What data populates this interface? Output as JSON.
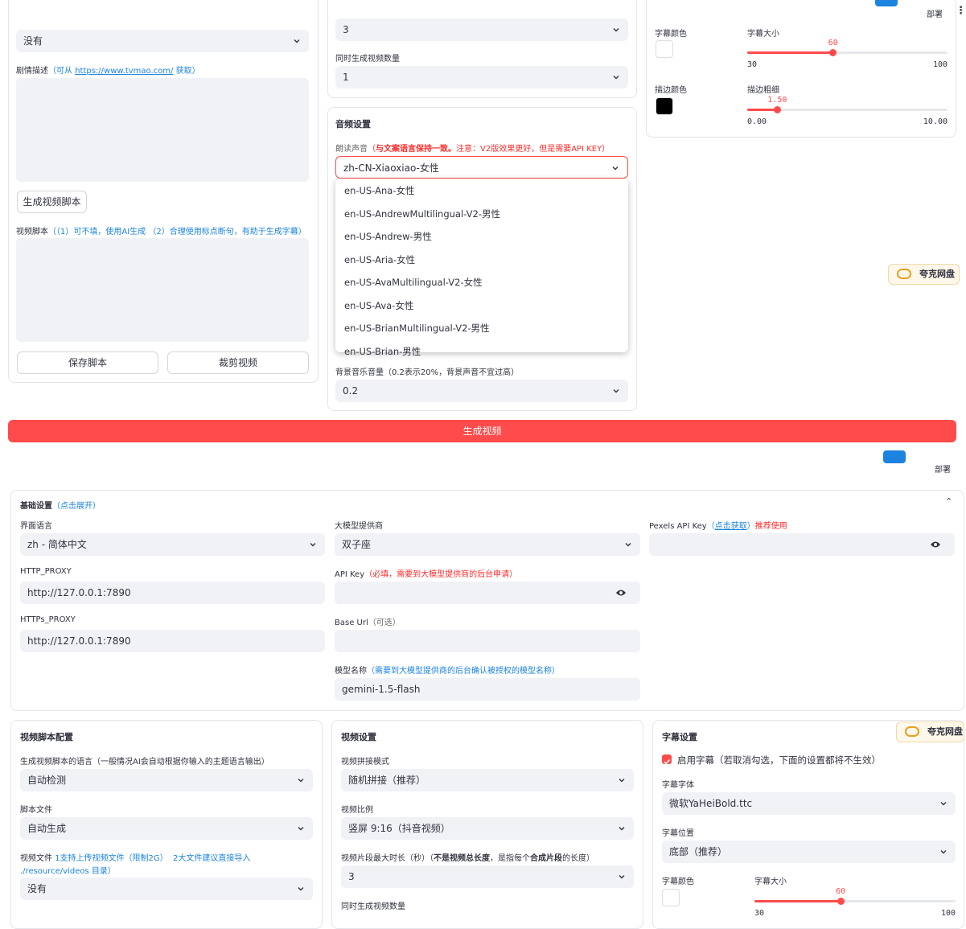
{
  "top": {
    "left": {
      "select_value": "没有",
      "story_label": "剧情描述",
      "story_hint_pre": "（可从 ",
      "story_link": "https://www.tvmao.com/",
      "story_hint_post": " 获取）",
      "gen_script_button": "生成视频脚本",
      "script_label": "视频脚本",
      "script_hint": "（（1）可不填，使用AI生成 （2）合理使用标点断句，有助于生成字幕）",
      "save_button": "保存脚本",
      "cut_button": "裁剪视频"
    },
    "middle": {
      "clip_duration_value": "3",
      "count_label": "同时生成视频数量",
      "count_value": "1",
      "audio_title": "音频设置",
      "voice_label": "朗读声音",
      "voice_note_pre": "（",
      "voice_note_bold": "与文案语言保持一致。",
      "voice_note_rest": "注意：V2版效果更好，但是需要API KEY）",
      "voice_value": "zh-CN-Xiaoxiao-女性",
      "voice_options": [
        "en-US-Ana-女性",
        "en-US-AndrewMultilingual-V2-男性",
        "en-US-Andrew-男性",
        "en-US-Aria-女性",
        "en-US-AvaMultilingual-V2-女性",
        "en-US-Ava-女性",
        "en-US-BrianMultilingual-V2-男性",
        "en-US-Brian-男性"
      ],
      "bgm_label": "背景音乐音量（0.2表示20%，背景声音不宜过高）",
      "bgm_value": "0.2"
    },
    "right": {
      "font_color_label": "字幕颜色",
      "font_color": "#ffffff",
      "font_size_label": "字幕大小",
      "font_size": {
        "value": 60,
        "min": 30,
        "max": 100
      },
      "stroke_color_label": "描边颜色",
      "stroke_color": "#000000",
      "stroke_width_label": "描边粗细",
      "stroke_width": {
        "value": 1.5,
        "value_label": "1.50",
        "min": {
          "value": 0,
          "label": "0.00"
        },
        "max": {
          "value": 10,
          "label": "10.00"
        }
      }
    },
    "deploy": "部署",
    "quark": "夸克网盘",
    "generate_button": "生成视频"
  },
  "bottom": {
    "deploy": "部署",
    "quark": "夸克网盘",
    "basic": {
      "title": "基础设置",
      "hint": "（点击展开）",
      "ui_language_label": "界面语言",
      "ui_language_value": "zh - 简体中文",
      "http_proxy_label": "HTTP_PROXY",
      "http_proxy_value": "http://127.0.0.1:7890",
      "https_proxy_label": "HTTPs_PROXY",
      "https_proxy_value": "http://127.0.0.1:7890",
      "llm_provider_label": "大模型提供商",
      "llm_provider_value": "双子座",
      "api_key_label": "API Key",
      "api_key_hint": "（必填，需要到大模型提供商的后台申请）",
      "base_url_label": "Base Url",
      "base_url_hint": "（可选）",
      "model_label": "模型名称",
      "model_hint": "（需要到大模型提供商的后台确认被授权的模型名称）",
      "model_value": "gemini-1.5-flash",
      "pexels_label": "Pexels API Key",
      "pexels_hint_pre": "（",
      "pexels_link": "点击获取",
      "pexels_hint_post": "）",
      "pexels_recommend": "推荐使用"
    },
    "script": {
      "title": "视频脚本配置",
      "language_label": "生成视频脚本的语言（一般情况AI会自动根据你输入的主题语言输出）",
      "language_value": "自动检测",
      "file_label": "脚本文件",
      "file_value": "自动生成",
      "video_label": "视频文件",
      "video_hint_1": "1支持上传视频文件（限制2G）",
      "video_hint_2": "2大文件建议直接导入",
      "video_hint_3": "./resource/videos 目录）",
      "video_value": "没有"
    },
    "video": {
      "title": "视频设置",
      "concat_label": "视频拼接模式",
      "concat_value": "随机拼接（推荐）",
      "ratio_label": "视频比例",
      "ratio_value": "竖屏 9:16（抖音视频）",
      "clip_label": "视频片段最大时长（秒）",
      "clip_hint_pre": "（",
      "clip_hint_bold_1": "不是视频总长度",
      "clip_hint_mid": "，是指每个",
      "clip_hint_bold_2": "合成片段",
      "clip_hint_post": "的长度）",
      "clip_value": "3",
      "count_label": "同时生成视频数量"
    },
    "subtitle": {
      "title": "字幕设置",
      "enable_label": "启用字幕（若取消勾选，下面的设置都将不生效）",
      "enabled": true,
      "font_label": "字幕字体",
      "font_value": "微软YaHeiBold.ttc",
      "position_label": "字幕位置",
      "position_value": "底部（推荐）",
      "color_label": "字幕颜色",
      "color": "#ffffff",
      "size_label": "字幕大小",
      "size": {
        "value": 60,
        "min": 30,
        "max": 100
      }
    }
  }
}
